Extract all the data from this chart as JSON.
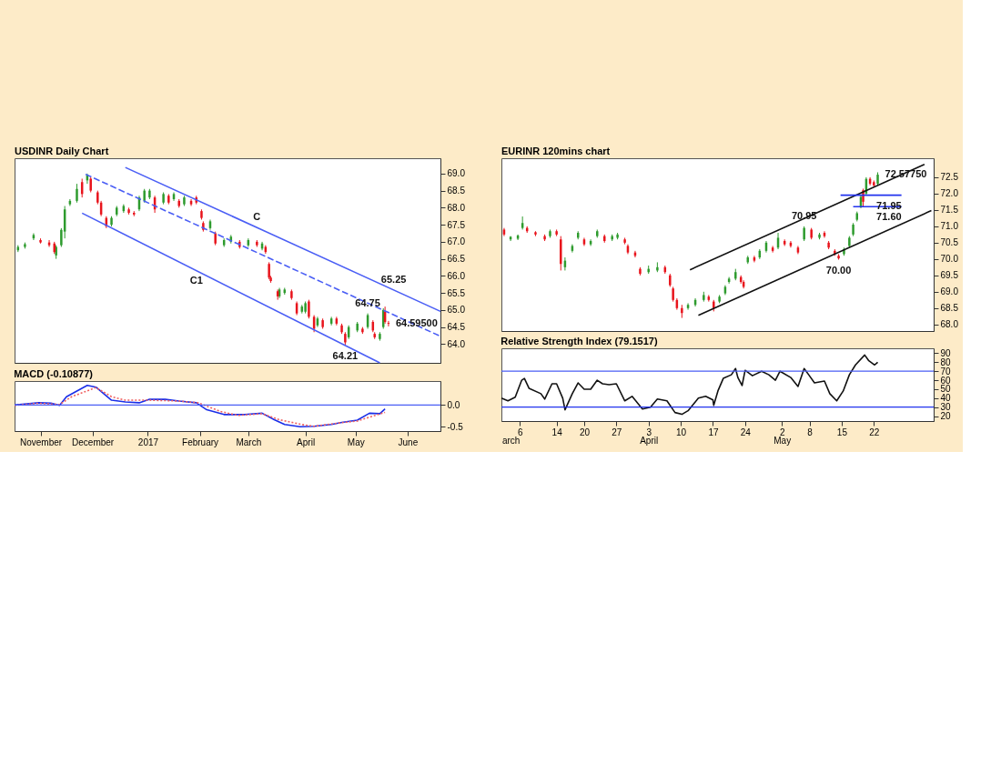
{
  "chart_data": [
    {
      "type": "candlestick",
      "title": "USDINR Daily Chart",
      "xlim": [
        "2016-10-17",
        "2017-06-20"
      ],
      "ylim": [
        63.45,
        69.45
      ],
      "tick_labels": "y",
      "yticks": [
        {
          "value": 64,
          "label": "64.0"
        },
        64.5,
        {
          "value": 65,
          "label": "65.0"
        },
        65.5,
        {
          "value": 66,
          "label": "66.0"
        },
        66.5,
        {
          "value": 67,
          "label": "67.0"
        },
        67.5,
        {
          "value": 68,
          "label": "68.0"
        },
        68.5,
        {
          "value": 69,
          "label": "69.0"
        }
      ],
      "series": [
        {
          "type": "candlestick",
          "color": "#2e9b2e",
          "x": [
            "2016-10-19",
            "2016-10-23",
            "2016-10-28",
            "2016-11-10",
            "2016-11-13",
            "2016-11-15",
            "2016-11-18",
            "2016-11-22",
            "2016-11-28",
            "2016-12-12",
            "2016-12-15",
            "2016-12-19",
            "2016-12-28",
            "2016-12-31",
            "2017-01-03",
            "2017-01-11",
            "2017-01-17",
            "2017-01-23",
            "2017-02-07",
            "2017-02-15",
            "2017-02-19",
            "2017-03-01",
            "2017-03-09",
            "2017-03-19",
            "2017-03-22",
            "2017-04-01",
            "2017-04-03",
            "2017-04-10",
            "2017-04-18",
            "2017-04-28",
            "2017-05-03",
            "2017-05-09",
            "2017-05-16",
            "2017-05-18"
          ],
          "ohlc": [
            [
              66.75,
              66.9,
              66.7,
              66.85
            ],
            [
              66.85,
              66.98,
              66.8,
              66.93
            ],
            [
              67.1,
              67.25,
              67.05,
              67.2
            ],
            [
              66.6,
              66.9,
              66.5,
              66.85
            ],
            [
              66.9,
              67.4,
              66.85,
              67.35
            ],
            [
              67.3,
              68.05,
              67.1,
              67.95
            ],
            [
              68.1,
              68.25,
              68.05,
              68.2
            ],
            [
              68.2,
              68.7,
              68.15,
              68.55
            ],
            [
              68.8,
              69.0,
              68.7,
              68.95
            ],
            [
              67.5,
              67.75,
              67.45,
              67.7
            ],
            [
              67.8,
              68.05,
              67.75,
              68.0
            ],
            [
              67.9,
              68.1,
              67.85,
              68.05
            ],
            [
              67.95,
              68.35,
              67.9,
              68.3
            ],
            [
              68.2,
              68.55,
              68.15,
              68.5
            ],
            [
              68.3,
              68.55,
              68.25,
              68.5
            ],
            [
              68.15,
              68.45,
              68.1,
              68.4
            ],
            [
              68.25,
              68.45,
              68.2,
              68.4
            ],
            [
              68.1,
              68.35,
              68.05,
              68.3
            ],
            [
              67.4,
              67.65,
              67.35,
              67.6
            ],
            [
              66.9,
              67.1,
              66.85,
              67.05
            ],
            [
              67.0,
              67.2,
              66.95,
              67.15
            ],
            [
              66.9,
              67.1,
              66.85,
              67.05
            ],
            [
              66.8,
              67.0,
              66.75,
              66.95
            ],
            [
              65.4,
              65.65,
              65.35,
              65.6
            ],
            [
              65.5,
              65.65,
              65.45,
              65.6
            ],
            [
              64.95,
              65.15,
              64.9,
              65.1
            ],
            [
              64.95,
              65.25,
              64.9,
              65.2
            ],
            [
              64.55,
              64.8,
              64.5,
              64.75
            ],
            [
              64.6,
              64.8,
              64.55,
              64.75
            ],
            [
              64.2,
              64.55,
              64.15,
              64.5
            ],
            [
              64.4,
              64.65,
              64.35,
              64.6
            ],
            [
              64.5,
              64.9,
              64.45,
              64.85
            ],
            [
              64.15,
              64.35,
              64.1,
              64.3
            ],
            [
              64.5,
              65.05,
              64.45,
              65.0
            ]
          ]
        },
        {
          "type": "candlestick",
          "color": "#e8141c",
          "x": [
            "2016-11-01",
            "2016-11-06",
            "2016-11-09",
            "2016-11-25",
            "2016-11-30",
            "2016-12-04",
            "2016-12-06",
            "2016-12-09",
            "2016-12-22",
            "2016-12-25",
            "2017-01-06",
            "2017-01-14",
            "2017-01-20",
            "2017-01-27",
            "2017-01-30",
            "2017-02-02",
            "2017-02-03",
            "2017-02-10",
            "2017-02-24",
            "2017-03-06",
            "2017-03-11",
            "2017-03-13",
            "2017-03-14",
            "2017-03-18",
            "2017-03-26",
            "2017-03-29",
            "2017-04-05",
            "2017-04-08",
            "2017-04-13",
            "2017-04-21",
            "2017-04-24",
            "2017-04-26",
            "2017-05-06",
            "2017-05-12",
            "2017-05-13",
            "2017-05-19",
            "2017-05-21"
          ],
          "ohlc": [
            [
              67.05,
              67.1,
              66.95,
              66.98
            ],
            [
              66.98,
              67.05,
              66.85,
              66.9
            ],
            [
              66.95,
              67.0,
              66.65,
              66.7
            ],
            [
              68.75,
              68.85,
              68.3,
              68.4
            ],
            [
              68.85,
              68.9,
              68.45,
              68.5
            ],
            [
              68.45,
              68.5,
              68.1,
              68.15
            ],
            [
              68.15,
              68.2,
              67.75,
              67.8
            ],
            [
              67.7,
              67.75,
              67.4,
              67.45
            ],
            [
              67.95,
              68.0,
              67.8,
              67.85
            ],
            [
              67.85,
              67.9,
              67.75,
              67.8
            ],
            [
              68.3,
              68.35,
              67.85,
              67.95
            ],
            [
              68.35,
              68.4,
              68.1,
              68.15
            ],
            [
              68.2,
              68.25,
              68.0,
              68.05
            ],
            [
              68.2,
              68.25,
              68.05,
              68.1
            ],
            [
              68.3,
              68.35,
              68.1,
              68.15
            ],
            [
              67.9,
              67.95,
              67.65,
              67.7
            ],
            [
              67.55,
              67.6,
              67.3,
              67.35
            ],
            [
              67.25,
              67.3,
              66.9,
              66.95
            ],
            [
              67.0,
              67.05,
              66.8,
              66.85
            ],
            [
              67.0,
              67.05,
              66.85,
              66.9
            ],
            [
              66.85,
              66.9,
              66.65,
              66.7
            ],
            [
              66.35,
              66.4,
              65.9,
              65.95
            ],
            [
              65.95,
              66.0,
              65.8,
              65.85
            ],
            [
              65.55,
              65.6,
              65.3,
              65.4
            ],
            [
              65.55,
              65.6,
              65.3,
              65.35
            ],
            [
              65.2,
              65.25,
              64.85,
              64.9
            ],
            [
              65.25,
              65.3,
              64.75,
              64.8
            ],
            [
              64.8,
              64.85,
              64.35,
              64.45
            ],
            [
              64.7,
              64.75,
              64.45,
              64.5
            ],
            [
              64.75,
              64.8,
              64.55,
              64.6
            ],
            [
              64.55,
              64.6,
              64.3,
              64.35
            ],
            [
              64.3,
              64.35,
              63.97,
              64.05
            ],
            [
              64.45,
              64.5,
              64.3,
              64.35
            ],
            [
              64.65,
              64.7,
              64.35,
              64.4
            ],
            [
              64.3,
              64.35,
              64.15,
              64.2
            ],
            [
              64.95,
              65.1,
              64.6,
              64.65
            ],
            [
              64.62,
              64.68,
              64.52,
              64.595
            ]
          ]
        },
        {
          "type": "line",
          "color": "#4a5ef5",
          "line_style": "solid",
          "x": [
            "2016-12-20",
            "2017-06-20"
          ],
          "values": [
            69.18,
            64.96
          ]
        },
        {
          "type": "line",
          "color": "#4a5ef5",
          "line_style": "dashed",
          "x": [
            "2016-11-27",
            "2017-06-20"
          ],
          "values": [
            68.98,
            64.23
          ]
        },
        {
          "type": "line",
          "color": "#4a5ef5",
          "line_style": "solid",
          "x": [
            "2016-11-25",
            "2017-05-16"
          ],
          "values": [
            67.84,
            63.45
          ]
        }
      ],
      "annotations": [
        {
          "text": "C",
          "x": "2017-03-06",
          "y": 67.42
        },
        {
          "text": "C1",
          "x": "2017-01-30",
          "y": 66.16
        },
        {
          "text": "64.75",
          "x": "2017-05-09",
          "y": 64.9
        },
        {
          "text": "65.25",
          "x": "2017-05-24",
          "y": 65.59
        },
        {
          "text": "64.21",
          "x": "2017-04-26",
          "y": 63.97
        },
        {
          "text": "64.59500",
          "x": "2017-05-21",
          "y": 64.595
        }
      ]
    },
    {
      "type": "line",
      "title": "MACD (-0.10877)",
      "xlim": [
        "2016-10-17",
        "2017-06-20"
      ],
      "ylim": [
        -0.6,
        0.55
      ],
      "yticks": [
        {
          "value": 0,
          "label": "0.0"
        },
        -0.5
      ],
      "xticks": [
        {
          "value": "2016-11-01",
          "label": "November"
        },
        {
          "value": "2016-12-01",
          "label": "December"
        },
        {
          "value": "2017-01-02",
          "label": "2017"
        },
        {
          "value": "2017-02-01",
          "label": "February"
        },
        {
          "value": "2017-03-01",
          "label": "March"
        },
        {
          "value": "2017-04-03",
          "label": "April"
        },
        {
          "value": "2017-05-02",
          "label": "May"
        },
        {
          "value": "2017-06-01",
          "label": "June"
        }
      ],
      "series": [
        {
          "color": "#1a2ee8",
          "line_style": "solid",
          "x": [
            "2016-10-17",
            "2016-10-31",
            "2016-11-07",
            "2016-11-12",
            "2016-11-16",
            "2016-11-28",
            "2016-12-03",
            "2016-12-12",
            "2016-12-20",
            "2016-12-28",
            "2017-01-03",
            "2017-01-12",
            "2017-01-20",
            "2017-01-30",
            "2017-02-05",
            "2017-02-15",
            "2017-02-27",
            "2017-03-09",
            "2017-03-16",
            "2017-03-22",
            "2017-03-31",
            "2017-04-08",
            "2017-04-18",
            "2017-04-24",
            "2017-05-03",
            "2017-05-10",
            "2017-05-16",
            "2017-05-19"
          ],
          "values": [
            0.0,
            0.05,
            0.04,
            -0.01,
            0.19,
            0.45,
            0.41,
            0.11,
            0.07,
            0.05,
            0.13,
            0.13,
            0.09,
            0.05,
            -0.11,
            -0.22,
            -0.22,
            -0.19,
            -0.34,
            -0.45,
            -0.5,
            -0.49,
            -0.45,
            -0.4,
            -0.35,
            -0.19,
            -0.2,
            -0.09
          ]
        },
        {
          "color": "#f06060",
          "line_style": "dotted",
          "x": [
            "2016-10-17",
            "2016-10-31",
            "2016-11-12",
            "2016-11-19",
            "2016-12-03",
            "2016-12-12",
            "2016-12-20",
            "2017-01-03",
            "2017-01-20",
            "2017-01-31",
            "2017-02-13",
            "2017-02-23",
            "2017-03-09",
            "2017-03-19",
            "2017-04-01",
            "2017-04-08",
            "2017-04-23",
            "2017-05-03",
            "2017-05-10",
            "2017-05-19"
          ],
          "values": [
            -0.01,
            0.04,
            0.01,
            0.19,
            0.4,
            0.19,
            0.11,
            0.11,
            0.09,
            0.05,
            -0.15,
            -0.24,
            -0.2,
            -0.34,
            -0.45,
            -0.49,
            -0.41,
            -0.37,
            -0.28,
            -0.17
          ]
        }
      ],
      "ref_lines": [
        {
          "axis": "y",
          "value": 0,
          "color": "#4a5ef5"
        }
      ]
    },
    {
      "type": "candlestick",
      "title": "EURINR 120mins chart",
      "xlim": [
        "2017-03-02T00:00",
        "2017-06-04T00:00"
      ],
      "ylim": [
        67.8,
        73.08
      ],
      "tick_labels": "y",
      "yticks": [
        {
          "value": 68,
          "label": "68.0"
        },
        68.5,
        {
          "value": 69,
          "label": "69.0"
        },
        69.5,
        {
          "value": 70,
          "label": "70.0"
        },
        70.5,
        {
          "value": 71,
          "label": "71.0"
        },
        71.5,
        {
          "value": 72,
          "label": "72.0"
        },
        72.5
      ],
      "series": [
        {
          "type": "candlestick",
          "color": "#2e9b2e",
          "x": [
            "2017-03-04T00:00",
            "2017-03-05T14:00",
            "2017-03-06T14:00",
            "2017-03-12T14:00",
            "2017-03-15T20:00",
            "2017-03-17T10:00",
            "2017-03-18T16:00",
            "2017-03-21T10:00",
            "2017-03-22T20:00",
            "2017-03-26T02:00",
            "2017-03-27T06:00",
            "2017-04-03T00:00",
            "2017-04-04T22:00",
            "2017-04-11T14:00",
            "2017-04-13T04:00",
            "2017-04-15T00:00",
            "2017-04-18T10:00",
            "2017-04-19T16:00",
            "2017-04-20T12:00",
            "2017-04-21T22:00",
            "2017-04-24T14:00",
            "2017-04-27T04:00",
            "2017-04-28T14:00",
            "2017-05-01T04:00",
            "2017-05-06T20:00",
            "2017-05-10T04:00",
            "2017-05-15T12:00",
            "2017-05-16T16:00",
            "2017-05-17T12:00",
            "2017-05-18T08:00",
            "2017-05-19T04:00",
            "2017-05-20T08:00",
            "2017-05-22T20:00"
          ],
          "ohlc": [
            [
              70.6,
              70.7,
              70.55,
              70.68
            ],
            [
              70.62,
              70.75,
              70.58,
              70.72
            ],
            [
              70.95,
              71.3,
              70.9,
              71.1
            ],
            [
              70.7,
              70.9,
              70.65,
              70.85
            ],
            [
              69.75,
              70.05,
              69.65,
              69.95
            ],
            [
              70.25,
              70.45,
              70.2,
              70.4
            ],
            [
              70.65,
              70.85,
              70.6,
              70.8
            ],
            [
              70.45,
              70.6,
              70.4,
              70.55
            ],
            [
              70.7,
              70.9,
              70.65,
              70.85
            ],
            [
              70.6,
              70.75,
              70.55,
              70.7
            ],
            [
              70.65,
              70.8,
              70.6,
              70.75
            ],
            [
              69.6,
              69.8,
              69.55,
              69.7
            ],
            [
              69.65,
              69.9,
              69.6,
              69.75
            ],
            [
              68.5,
              68.65,
              68.45,
              68.6
            ],
            [
              68.6,
              68.8,
              68.55,
              68.75
            ],
            [
              68.75,
              69.0,
              68.7,
              68.9
            ],
            [
              68.7,
              68.9,
              68.65,
              68.85
            ],
            [
              68.95,
              69.2,
              68.9,
              69.15
            ],
            [
              69.3,
              69.45,
              69.25,
              69.4
            ],
            [
              69.4,
              69.7,
              69.35,
              69.6
            ],
            [
              69.9,
              70.1,
              69.85,
              70.05
            ],
            [
              70.05,
              70.3,
              70.0,
              70.25
            ],
            [
              70.25,
              70.55,
              70.2,
              70.5
            ],
            [
              70.35,
              70.8,
              70.3,
              70.65
            ],
            [
              70.6,
              71.0,
              70.55,
              70.95
            ],
            [
              70.65,
              70.8,
              70.6,
              70.75
            ],
            [
              70.15,
              70.35,
              70.1,
              70.3
            ],
            [
              70.4,
              70.7,
              70.35,
              70.65
            ],
            [
              70.75,
              71.1,
              70.7,
              71.05
            ],
            [
              71.2,
              71.45,
              71.15,
              71.4
            ],
            [
              71.6,
              71.95,
              71.55,
              71.9
            ],
            [
              72.0,
              72.5,
              71.95,
              72.45
            ],
            [
              72.3,
              72.65,
              72.25,
              72.5775
            ]
          ]
        },
        {
          "type": "candlestick",
          "color": "#e8141c",
          "x": [
            "2017-03-02T14:00",
            "2017-03-07T14:00",
            "2017-03-09T10:00",
            "2017-03-11T10:00",
            "2017-03-14T00:00",
            "2017-03-14T22:00",
            "2017-03-20T00:00",
            "2017-03-24T10:00",
            "2017-03-28T20:00",
            "2017-03-29T12:00",
            "2017-03-31T02:00",
            "2017-04-01T04:00",
            "2017-04-06T14:00",
            "2017-04-07T16:00",
            "2017-04-08T08:00",
            "2017-04-09T04:00",
            "2017-04-10T06:00",
            "2017-04-16T02:00",
            "2017-04-17T04:00",
            "2017-04-23T02:00",
            "2017-04-23T16:00",
            "2017-04-26T00:00",
            "2017-04-30T00:00",
            "2017-05-02T14:00",
            "2017-05-03T22:00",
            "2017-05-05T12:00",
            "2017-05-08T10:00",
            "2017-05-11T06:00",
            "2017-05-12T04:00",
            "2017-05-13T12:00",
            "2017-05-14T08:00",
            "2017-05-19T16:00",
            "2017-05-21T04:00",
            "2017-05-22T00:00"
          ],
          "ohlc": [
            [
              70.9,
              70.95,
              70.7,
              70.75
            ],
            [
              70.95,
              71.0,
              70.8,
              70.85
            ],
            [
              70.82,
              70.85,
              70.7,
              70.75
            ],
            [
              70.7,
              70.75,
              70.55,
              70.6
            ],
            [
              70.85,
              70.9,
              70.7,
              70.75
            ],
            [
              70.6,
              70.7,
              69.65,
              69.85
            ],
            [
              70.6,
              70.65,
              70.4,
              70.45
            ],
            [
              70.7,
              70.75,
              70.5,
              70.55
            ],
            [
              70.6,
              70.65,
              70.45,
              70.5
            ],
            [
              70.4,
              70.45,
              70.15,
              70.2
            ],
            [
              70.2,
              70.25,
              70.05,
              70.1
            ],
            [
              69.7,
              69.75,
              69.5,
              69.55
            ],
            [
              69.75,
              69.8,
              69.55,
              69.6
            ],
            [
              69.5,
              69.55,
              69.15,
              69.2
            ],
            [
              69.1,
              69.15,
              68.7,
              68.75
            ],
            [
              68.75,
              68.8,
              68.45,
              68.5
            ],
            [
              68.5,
              68.6,
              68.2,
              68.35
            ],
            [
              68.85,
              68.9,
              68.7,
              68.75
            ],
            [
              68.7,
              68.75,
              68.4,
              68.5
            ],
            [
              69.45,
              69.5,
              69.25,
              69.3
            ],
            [
              69.3,
              69.35,
              69.1,
              69.15
            ],
            [
              70.05,
              70.1,
              69.9,
              69.95
            ],
            [
              70.35,
              70.4,
              70.2,
              70.25
            ],
            [
              70.55,
              70.6,
              70.4,
              70.45
            ],
            [
              70.5,
              70.55,
              70.35,
              70.4
            ],
            [
              70.35,
              70.4,
              70.15,
              70.2
            ],
            [
              70.9,
              70.95,
              70.6,
              70.65
            ],
            [
              70.8,
              70.85,
              70.65,
              70.7
            ],
            [
              70.5,
              70.55,
              70.3,
              70.35
            ],
            [
              70.25,
              70.3,
              70.1,
              70.15
            ],
            [
              70.1,
              70.15,
              69.98,
              70.02
            ],
            [
              72.1,
              72.15,
              71.6,
              71.75
            ],
            [
              72.45,
              72.5,
              72.25,
              72.3
            ],
            [
              72.35,
              72.4,
              72.2,
              72.25
            ]
          ]
        },
        {
          "type": "line",
          "color": "#111111",
          "line_style": "solid",
          "x": [
            "2017-04-12T00:00",
            "2017-06-02T00:00"
          ],
          "values": [
            69.67,
            72.89
          ]
        },
        {
          "type": "line",
          "color": "#111111",
          "line_style": "solid",
          "x": [
            "2017-04-13T20:00",
            "2017-06-03T12:00"
          ],
          "values": [
            68.28,
            71.48
          ]
        },
        {
          "type": "line",
          "color": "#2233ee",
          "line_style": "solid",
          "x": [
            "2017-05-14T18:00",
            "2017-05-28T00:00"
          ],
          "values": [
            71.95,
            71.95
          ]
        },
        {
          "type": "line",
          "color": "#2233ee",
          "line_style": "solid",
          "x": [
            "2017-05-17T12:00",
            "2017-05-28T00:00"
          ],
          "values": [
            71.6,
            71.6
          ]
        }
      ],
      "annotations": [
        {
          "text": "70.95",
          "x": "2017-05-06T20:00",
          "y": 71.0
        },
        {
          "text": "70.00",
          "x": "2017-05-14T08:00",
          "y": 69.98
        },
        {
          "text": "71.95",
          "x": "2017-05-28T00:00",
          "y": 71.95
        },
        {
          "text": "71.60",
          "x": "2017-05-28T00:00",
          "y": 71.6
        },
        {
          "text": "72.57750",
          "x": "2017-05-22T20:00",
          "y": 72.5775
        }
      ]
    },
    {
      "type": "line",
      "title": "Relative Strength Index (79.1517)",
      "xlim": [
        "2017-03-02T00:00",
        "2017-06-04T00:00"
      ],
      "ylim": [
        14.5,
        95.5
      ],
      "yticks": [
        20,
        30,
        40,
        50,
        60,
        70,
        80,
        90
      ],
      "xticks": [
        {
          "value": "2017-03-06",
          "label": "6"
        },
        {
          "value": "2017-03-14",
          "label": "14"
        },
        {
          "value": "2017-03-20",
          "label": "20"
        },
        {
          "value": "2017-03-27",
          "label": "27"
        },
        {
          "value": "2017-04-03",
          "label": "3"
        },
        {
          "value": "2017-04-10",
          "label": "10"
        },
        {
          "value": "2017-04-17",
          "label": "17"
        },
        {
          "value": "2017-04-24",
          "label": "24"
        },
        {
          "value": "2017-05-02",
          "label": "2"
        },
        {
          "value": "2017-05-08",
          "label": "8"
        },
        {
          "value": "2017-05-15",
          "label": "15"
        },
        {
          "value": "2017-05-22",
          "label": "22"
        }
      ],
      "x2lim": [
        "2017-03-02T00:00",
        "2017-06-04T00:00"
      ],
      "x2ticks": [
        {
          "value": "2017-03-04",
          "label": "arch"
        },
        {
          "value": "2017-04-03",
          "label": "April"
        },
        {
          "value": "2017-05-02",
          "label": "May"
        }
      ],
      "series": [
        {
          "color": "#111111",
          "line_style": "solid",
          "x": [
            "2017-03-02T00:00",
            "2017-03-03T10:00",
            "2017-03-05T00:00",
            "2017-03-06T10:00",
            "2017-03-07T00:00",
            "2017-03-08T00:00",
            "2017-03-10T14:00",
            "2017-03-11T10:00",
            "2017-03-13T00:00",
            "2017-03-14T00:00",
            "2017-03-15T08:00",
            "2017-03-15T20:00",
            "2017-03-17T10:00",
            "2017-03-18T16:00",
            "2017-03-20T00:00",
            "2017-03-21T10:00",
            "2017-03-22T20:00",
            "2017-03-24T00:00",
            "2017-03-25T10:00",
            "2017-03-27T00:00",
            "2017-03-28T20:00",
            "2017-03-30T10:00",
            "2017-04-01T16:00",
            "2017-04-03T10:00",
            "2017-04-04T22:00",
            "2017-04-07T00:00",
            "2017-04-08T18:00",
            "2017-04-10T06:00",
            "2017-04-11T14:00",
            "2017-04-13T20:00",
            "2017-04-15T10:00",
            "2017-04-17T00:00",
            "2017-04-17T04:00",
            "2017-04-18T02:00",
            "2017-04-19T06:00",
            "2017-04-21T00:00",
            "2017-04-21T22:00",
            "2017-04-22T10:00",
            "2017-04-23T08:00",
            "2017-04-24T00:00",
            "2017-04-25T14:00",
            "2017-04-27T14:00",
            "2017-04-29T04:00",
            "2017-04-30T14:00",
            "2017-05-01T14:00",
            "2017-05-03T22:00",
            "2017-05-05T12:00",
            "2017-05-06T20:00",
            "2017-05-07T20:00",
            "2017-05-09T02:00",
            "2017-05-11T06:00",
            "2017-05-12T10:00",
            "2017-05-13T22:00",
            "2017-05-15T08:00",
            "2017-05-16T16:00",
            "2017-05-18T00:00",
            "2017-05-20T00:00",
            "2017-05-20T20:00",
            "2017-05-22T04:00",
            "2017-05-22T20:00"
          ],
          "values": [
            40,
            37,
            41,
            60,
            62,
            51,
            45,
            39,
            56,
            56,
            40,
            27,
            45,
            57,
            50,
            50,
            60,
            56,
            55,
            56,
            37,
            42,
            28,
            30,
            39,
            37,
            24,
            22,
            26,
            40,
            42,
            38,
            32,
            48,
            62,
            66,
            73,
            63,
            54,
            71,
            65,
            70,
            66,
            60,
            70,
            63,
            53,
            73,
            66,
            57,
            59,
            45,
            37,
            48,
            66,
            77,
            88,
            82,
            77,
            80
          ]
        }
      ],
      "ref_lines": [
        {
          "axis": "y",
          "value": 70,
          "color": "#4a5ef5"
        },
        {
          "axis": "y",
          "value": 30,
          "color": "#2233ee"
        }
      ]
    }
  ]
}
